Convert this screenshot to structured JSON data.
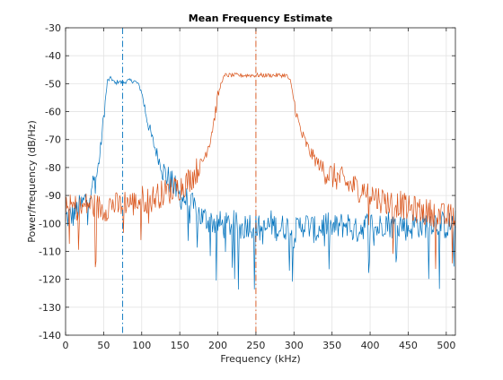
{
  "chart_data": {
    "type": "line",
    "title": "Mean Frequency Estimate",
    "xlabel": "Frequency (kHz)",
    "ylabel": "Power/frequency (dB/Hz)",
    "xlim": [
      0,
      512
    ],
    "ylim": [
      -140,
      -30
    ],
    "xticks": [
      0,
      50,
      100,
      150,
      200,
      250,
      300,
      350,
      400,
      450,
      500
    ],
    "yticks": [
      -140,
      -130,
      -120,
      -110,
      -100,
      -90,
      -80,
      -70,
      -60,
      -50,
      -40,
      -30
    ],
    "grid": true,
    "series": [
      {
        "color": "#0072BD",
        "x": [
          0,
          10,
          20,
          30,
          40,
          45,
          50,
          55,
          60,
          65,
          70,
          75,
          80,
          85,
          90,
          95,
          100,
          105,
          110,
          115,
          120,
          125,
          130,
          135,
          140,
          145,
          150,
          160,
          170,
          180,
          190,
          200,
          210,
          220,
          230,
          240,
          250,
          260,
          270,
          280,
          290,
          300,
          310,
          320,
          330,
          340,
          350,
          360,
          370,
          380,
          390,
          400,
          410,
          420,
          430,
          440,
          450,
          460,
          470,
          480,
          490,
          500,
          512
        ],
        "values": [
          -98,
          -97,
          -94,
          -90,
          -84,
          -76,
          -62,
          -49,
          -48,
          -50,
          -49,
          -50,
          -49,
          -49,
          -49,
          -50,
          -53,
          -60,
          -66,
          -71,
          -75,
          -79,
          -82,
          -84,
          -86,
          -88,
          -90,
          -92,
          -95,
          -98,
          -99,
          -100,
          -101,
          -100,
          -102,
          -100,
          -101,
          -103,
          -100,
          -102,
          -101,
          -104,
          -100,
          -101,
          -103,
          -100,
          -102,
          -101,
          -100,
          -103,
          -101,
          -100,
          -102,
          -99,
          -101,
          -100,
          -102,
          -100,
          -101,
          -99,
          -100,
          -101,
          -100
        ]
      },
      {
        "color": "#D95319",
        "x": [
          0,
          10,
          20,
          30,
          40,
          50,
          60,
          70,
          80,
          90,
          100,
          110,
          120,
          130,
          140,
          150,
          160,
          170,
          180,
          190,
          195,
          200,
          205,
          210,
          220,
          230,
          240,
          250,
          260,
          270,
          280,
          290,
          295,
          300,
          305,
          310,
          320,
          330,
          340,
          350,
          360,
          370,
          380,
          390,
          400,
          410,
          420,
          430,
          440,
          450,
          460,
          470,
          480,
          490,
          500,
          512
        ],
        "values": [
          -95,
          -94,
          -95,
          -93,
          -94,
          -95,
          -93,
          -94,
          -92,
          -93,
          -91,
          -92,
          -90,
          -89,
          -88,
          -87,
          -85,
          -82,
          -78,
          -70,
          -63,
          -55,
          -49,
          -47,
          -47,
          -47,
          -47,
          -47,
          -47,
          -47,
          -47,
          -47,
          -49,
          -56,
          -63,
          -68,
          -74,
          -78,
          -81,
          -83,
          -84,
          -86,
          -87,
          -88,
          -89,
          -91,
          -92,
          -93,
          -93,
          -95,
          -95,
          -96,
          -96,
          -97,
          -98,
          -97
        ]
      }
    ],
    "vertical_lines": [
      {
        "x": 75,
        "color": "#0072BD",
        "style": "dash-dot"
      },
      {
        "x": 250,
        "color": "#D95319",
        "style": "dash-dot"
      }
    ]
  }
}
